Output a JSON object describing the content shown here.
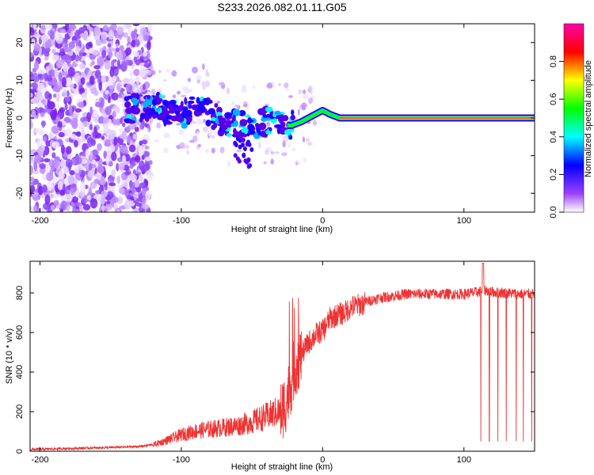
{
  "title": "S233.2026.082.01.11.G05",
  "chart_data": [
    {
      "type": "heatmap",
      "title": "S233.2026.082.01.11.G05",
      "xlabel": "Height of straight line (km)",
      "ylabel": "Frequency (Hz)",
      "xlim": [
        -207,
        150
      ],
      "ylim": [
        -25,
        25
      ],
      "xticks": [
        -200,
        -100,
        0,
        100
      ],
      "yticks": [
        -20,
        -10,
        0,
        10,
        20
      ],
      "colorbar": {
        "label": "Normalized spectral amplitude",
        "range": [
          0,
          1
        ],
        "ticks": [
          0.0,
          0.2,
          0.4,
          0.6,
          0.8
        ],
        "tick_labels": [
          "0.0",
          "0.2",
          "0.4",
          "0.6",
          "0.8"
        ],
        "colors": [
          "#ffffff",
          "#8000ff",
          "#0000ff",
          "#00ffff",
          "#00ff00",
          "#ffff00",
          "#ff0000",
          "#ff00ff"
        ]
      },
      "ridge": {
        "description_points_x": [
          -140,
          -120,
          -100,
          -85,
          -70,
          -55,
          -40,
          -30,
          -22,
          -15,
          -5,
          0,
          5,
          12,
          20,
          60,
          100,
          108,
          112,
          150
        ],
        "description_points_y": [
          2,
          3,
          1,
          3,
          -1,
          -2,
          -1,
          -2,
          -2,
          -1,
          1,
          2,
          1,
          0,
          0,
          0,
          0,
          0,
          0,
          0
        ]
      }
    },
    {
      "type": "line",
      "xlabel": "Height of straight line (km)",
      "ylabel": "SNR (10 * v/v)",
      "xlim": [
        -207,
        150
      ],
      "ylim": [
        0,
        960
      ],
      "xticks": [
        -200,
        -100,
        0,
        100
      ],
      "yticks": [
        0,
        200,
        400,
        600,
        800
      ],
      "color": "#ee3333",
      "series": [
        {
          "name": "SNR",
          "x": [
            -207,
            -180,
            -150,
            -130,
            -120,
            -110,
            -100,
            -90,
            -80,
            -70,
            -60,
            -50,
            -40,
            -30,
            -25,
            -20,
            -17,
            -15,
            -10,
            -5,
            0,
            5,
            10,
            15,
            20,
            30,
            40,
            50,
            60,
            70,
            80,
            90,
            100,
            110,
            115,
            120,
            130,
            140,
            150
          ],
          "y": [
            10,
            15,
            20,
            25,
            35,
            60,
            90,
            110,
            120,
            130,
            140,
            160,
            190,
            220,
            300,
            450,
            500,
            500,
            560,
            600,
            620,
            680,
            700,
            710,
            740,
            760,
            780,
            790,
            800,
            800,
            800,
            800,
            800,
            810,
            820,
            810,
            805,
            800,
            800
          ]
        }
      ]
    }
  ]
}
